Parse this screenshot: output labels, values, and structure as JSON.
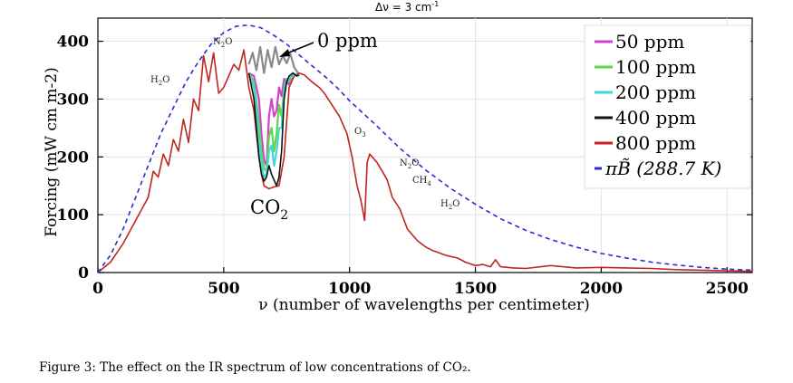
{
  "chart_data": {
    "type": "line",
    "resolution_label": "Δν = 3 cm",
    "resolution_sup": "-1",
    "xlabel": "ν (number of wavelengths per centimeter)",
    "ylabel": "Forcing (mW cm m-2)",
    "xlim": [
      0,
      2600
    ],
    "ylim": [
      0,
      440
    ],
    "xticks": [
      0,
      500,
      1000,
      1500,
      2000,
      2500
    ],
    "yticks": [
      0,
      100,
      200,
      300,
      400
    ],
    "legend_position": "top-right",
    "colors": {
      "ppm0": "#8a8a8a",
      "ppm50": "#d23fd2",
      "ppm100": "#5cd84a",
      "ppm200": "#40d8d8",
      "ppm400": "#111111",
      "ppm800": "#c0261f",
      "planck": "#2a2ad6"
    },
    "legend": [
      {
        "key": "ppm50",
        "label": "50 ppm"
      },
      {
        "key": "ppm100",
        "label": "100 ppm"
      },
      {
        "key": "ppm200",
        "label": "200 ppm"
      },
      {
        "key": "ppm400",
        "label": "400 ppm"
      },
      {
        "key": "ppm800",
        "label": "800 ppm"
      },
      {
        "key": "planck",
        "label": "πB̃ (288.7 K)"
      }
    ],
    "annotations": {
      "zero_ppm": "0 ppm",
      "co2": "CO",
      "co2_sub": "2",
      "n2o_left": "N",
      "n2o_left_sub": "2",
      "n2o_left_tail": "O",
      "h2o_left": "H",
      "h2o_left_sub": "2",
      "h2o_left_tail": "O",
      "o3": "O",
      "o3_sub": "3",
      "n2o_right": "N",
      "n2o_right_sub": "2",
      "n2o_right_tail": "O",
      "ch4": "CH",
      "ch4_sub": "4",
      "h2o_right": "H",
      "h2o_right_sub": "2",
      "h2o_right_tail": "O"
    },
    "planck": {
      "x": [
        0,
        50,
        100,
        150,
        200,
        250,
        300,
        350,
        400,
        450,
        500,
        550,
        600,
        650,
        700,
        750,
        800,
        850,
        900,
        950,
        1000,
        1100,
        1200,
        1300,
        1400,
        1500,
        1600,
        1700,
        1800,
        1900,
        2000,
        2100,
        2200,
        2300,
        2400,
        2500,
        2600
      ],
      "y": [
        0,
        30,
        75,
        130,
        185,
        240,
        285,
        330,
        365,
        395,
        415,
        426,
        428,
        423,
        410,
        395,
        376,
        358,
        340,
        320,
        297,
        257,
        215,
        178,
        146,
        118,
        93,
        73,
        57,
        44,
        33,
        25,
        18,
        13,
        9,
        6,
        4
      ]
    },
    "series": [
      {
        "key": "ppm0",
        "x": [
          600,
          615,
          630,
          645,
          660,
          675,
          690,
          705,
          720,
          735,
          750,
          765,
          780,
          795
        ],
        "y": [
          360,
          380,
          350,
          390,
          345,
          385,
          355,
          390,
          360,
          375,
          362,
          378,
          355,
          345
        ]
      },
      {
        "key": "ppm50",
        "x": [
          600,
          620,
          640,
          650,
          660,
          670,
          680,
          690,
          700,
          710,
          720,
          730,
          740,
          750,
          760,
          775,
          790,
          800
        ],
        "y": [
          345,
          340,
          300,
          240,
          195,
          185,
          270,
          300,
          270,
          280,
          320,
          305,
          335,
          330,
          325,
          345,
          340,
          342
        ]
      },
      {
        "key": "ppm100",
        "x": [
          600,
          620,
          640,
          650,
          660,
          670,
          680,
          690,
          700,
          710,
          720,
          730,
          740,
          750,
          760,
          775,
          790,
          800
        ],
        "y": [
          345,
          330,
          260,
          210,
          180,
          175,
          235,
          250,
          210,
          240,
          290,
          270,
          320,
          335,
          330,
          345,
          340,
          342
        ]
      },
      {
        "key": "ppm200",
        "x": [
          600,
          620,
          640,
          650,
          660,
          670,
          680,
          690,
          700,
          710,
          720,
          730,
          740,
          750,
          760,
          775,
          790,
          800
        ],
        "y": [
          345,
          320,
          230,
          190,
          165,
          170,
          210,
          220,
          185,
          210,
          250,
          250,
          310,
          335,
          335,
          345,
          340,
          342
        ]
      },
      {
        "key": "ppm400",
        "x": [
          600,
          620,
          640,
          650,
          660,
          670,
          680,
          690,
          700,
          710,
          720,
          730,
          740,
          750,
          760,
          775,
          790,
          800
        ],
        "y": [
          345,
          300,
          200,
          170,
          158,
          165,
          185,
          170,
          160,
          150,
          165,
          210,
          300,
          330,
          340,
          345,
          340,
          342
        ]
      },
      {
        "key": "ppm800",
        "x": [
          0,
          50,
          100,
          150,
          200,
          220,
          240,
          260,
          280,
          300,
          320,
          340,
          360,
          380,
          400,
          420,
          440,
          460,
          480,
          500,
          520,
          540,
          560,
          580,
          600,
          620,
          640,
          650,
          660,
          680,
          700,
          720,
          740,
          760,
          780,
          800,
          820,
          850,
          880,
          900,
          930,
          960,
          990,
          1010,
          1030,
          1045,
          1060,
          1070,
          1080,
          1090,
          1110,
          1130,
          1150,
          1170,
          1200,
          1230,
          1250,
          1270,
          1300,
          1330,
          1350,
          1380,
          1400,
          1430,
          1460,
          1500,
          1530,
          1560,
          1580,
          1600,
          1650,
          1700,
          1800,
          1900,
          2000,
          2100,
          2200,
          2300,
          2400,
          2500,
          2600
        ],
        "y": [
          0,
          18,
          50,
          90,
          130,
          175,
          165,
          205,
          185,
          230,
          210,
          265,
          225,
          300,
          280,
          375,
          330,
          380,
          310,
          320,
          340,
          360,
          350,
          385,
          320,
          280,
          200,
          170,
          150,
          145,
          148,
          150,
          200,
          320,
          340,
          345,
          342,
          330,
          320,
          310,
          290,
          270,
          240,
          200,
          150,
          125,
          90,
          190,
          205,
          200,
          190,
          175,
          160,
          130,
          110,
          75,
          65,
          55,
          45,
          38,
          35,
          30,
          28,
          25,
          18,
          12,
          14,
          10,
          22,
          10,
          8,
          7,
          12,
          8,
          9,
          8,
          7,
          5,
          4,
          3,
          2
        ]
      }
    ]
  },
  "caption": "Figure 3: The effect on the IR spectrum of low concentrations of CO₂."
}
